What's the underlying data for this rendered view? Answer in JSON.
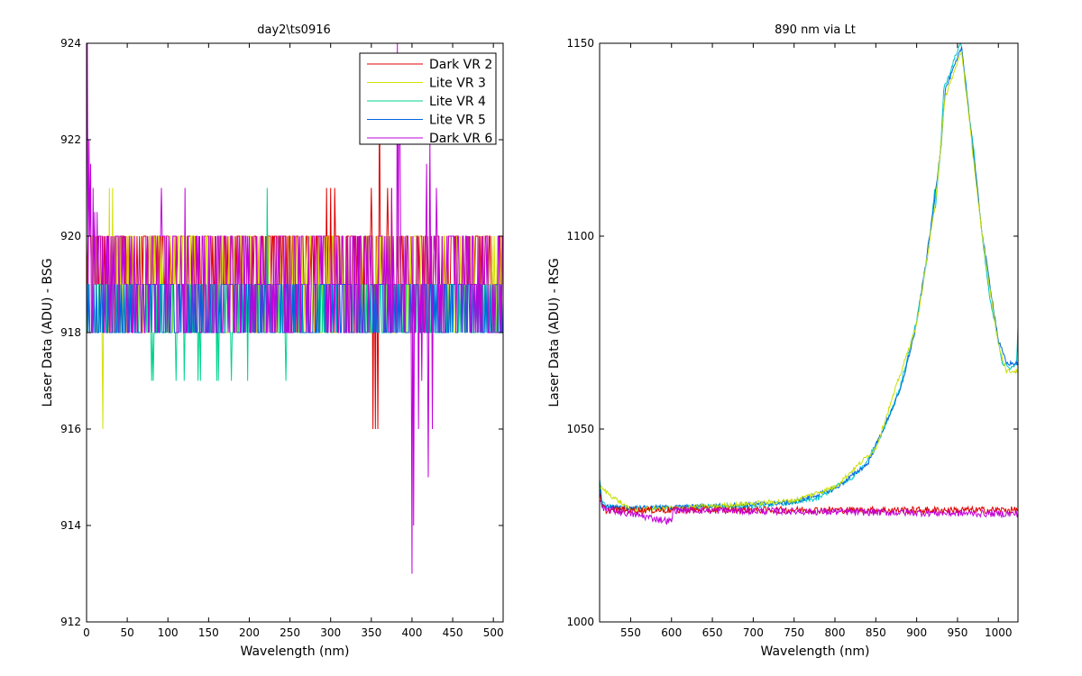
{
  "chart_data": [
    {
      "type": "line",
      "title": "day2\\ts0916",
      "xlabel": "Wavelength (nm)",
      "ylabel": "Laser Data (ADU) - BSG",
      "xlim": [
        0,
        512
      ],
      "ylim": [
        912,
        924
      ],
      "xticks": [
        0,
        50,
        100,
        150,
        200,
        250,
        300,
        350,
        400,
        450,
        500
      ],
      "yticks": [
        912,
        914,
        916,
        918,
        920,
        922,
        924
      ],
      "legend": "top-right",
      "grid": false,
      "series": [
        {
          "name": "Dark VR 2",
          "color": "#e00000",
          "band": [
            919,
            920
          ],
          "spikes": [
            [
              295,
              921
            ],
            [
              300,
              921
            ],
            [
              305,
              921
            ],
            [
              350,
              921
            ],
            [
              352,
              916
            ],
            [
              355,
              916
            ],
            [
              358,
              916
            ],
            [
              360,
              923
            ],
            [
              365,
              918
            ],
            [
              370,
              921
            ],
            [
              375,
              921
            ],
            [
              380,
              919
            ]
          ]
        },
        {
          "name": "Lite VR 3",
          "color": "#d4e000",
          "band": [
            918,
            920
          ],
          "spikes": [
            [
              20,
              916
            ],
            [
              28,
              921
            ],
            [
              32,
              921
            ],
            [
              330,
              918
            ]
          ]
        },
        {
          "name": "Lite VR 4",
          "color": "#00d48a",
          "band": [
            918,
            919
          ],
          "spikes": [
            [
              80,
              917
            ],
            [
              82,
              917
            ],
            [
              110,
              917
            ],
            [
              120,
              917
            ],
            [
              137,
              917
            ],
            [
              140,
              917
            ],
            [
              160,
              917
            ],
            [
              162,
              917
            ],
            [
              178,
              917
            ],
            [
              198,
              917
            ],
            [
              222,
              921
            ],
            [
              245,
              917
            ]
          ]
        },
        {
          "name": "Lite VR 5",
          "color": "#0066e0",
          "band": [
            918,
            919
          ],
          "spikes": []
        },
        {
          "name": "Dark VR 6",
          "color": "#c000d8",
          "band": [
            918,
            920
          ],
          "spikes": [
            [
              1,
              924
            ],
            [
              3,
              922
            ],
            [
              5,
              921.5
            ],
            [
              8,
              921
            ],
            [
              10,
              920.5
            ],
            [
              13,
              920.5
            ],
            [
              92,
              921
            ],
            [
              121,
              921
            ],
            [
              295,
              918
            ],
            [
              350,
              920
            ],
            [
              355,
              918
            ],
            [
              375,
              921
            ],
            [
              382,
              924
            ],
            [
              384,
              923
            ],
            [
              385,
              923
            ],
            [
              400,
              913
            ],
            [
              402,
              914
            ],
            [
              408,
              916
            ],
            [
              412,
              917
            ],
            [
              415,
              918
            ],
            [
              418,
              921.5
            ],
            [
              420,
              915
            ],
            [
              422,
              922
            ],
            [
              425,
              916
            ],
            [
              430,
              921
            ]
          ]
        }
      ]
    },
    {
      "type": "line",
      "title": "890 nm via Lt",
      "xlabel": "Wavelength (nm)",
      "ylabel": "Laser Data (ADU) - RSG",
      "xlim": [
        512,
        1024
      ],
      "ylim": [
        1000,
        1150
      ],
      "xticks": [
        550,
        600,
        650,
        700,
        750,
        800,
        850,
        900,
        950,
        1000
      ],
      "yticks": [
        1000,
        1050,
        1100,
        1150
      ],
      "grid": false,
      "series": [
        {
          "color": "#00c8c8",
          "role": "lite",
          "points": [
            [
              512,
              1037
            ],
            [
              515,
              1031
            ],
            [
              520,
              1030
            ],
            [
              550,
              1029.5
            ],
            [
              600,
              1029.5
            ],
            [
              650,
              1030
            ],
            [
              700,
              1030
            ],
            [
              750,
              1031
            ],
            [
              780,
              1032
            ],
            [
              800,
              1035
            ],
            [
              820,
              1037
            ],
            [
              840,
              1042
            ],
            [
              860,
              1050
            ],
            [
              880,
              1061
            ],
            [
              900,
              1078
            ],
            [
              915,
              1097
            ],
            [
              922,
              1112
            ],
            [
              923,
              1107
            ],
            [
              930,
              1125
            ],
            [
              933,
              1138
            ],
            [
              940,
              1142
            ],
            [
              948,
              1147
            ],
            [
              953,
              1150
            ],
            [
              955,
              1149
            ],
            [
              960,
              1140
            ],
            [
              965,
              1130
            ],
            [
              970,
              1122
            ],
            [
              980,
              1100
            ],
            [
              990,
              1083
            ],
            [
              1000,
              1073
            ],
            [
              1005,
              1067
            ],
            [
              1012,
              1066
            ],
            [
              1018,
              1066
            ],
            [
              1022,
              1067
            ],
            [
              1024,
              1076
            ]
          ]
        },
        {
          "color": "#0066e0",
          "role": "lite-2",
          "points": [
            [
              512,
              1036
            ],
            [
              515,
              1030
            ],
            [
              550,
              1029.5
            ],
            [
              650,
              1030
            ],
            [
              750,
              1031
            ],
            [
              800,
              1034.5
            ],
            [
              840,
              1041
            ],
            [
              880,
              1060
            ],
            [
              900,
              1077
            ],
            [
              920,
              1106
            ],
            [
              930,
              1124
            ],
            [
              935,
              1138
            ],
            [
              950,
              1146
            ],
            [
              955,
              1149
            ],
            [
              965,
              1130
            ],
            [
              980,
              1101
            ],
            [
              1000,
              1073
            ],
            [
              1010,
              1067
            ],
            [
              1024,
              1067
            ]
          ]
        },
        {
          "color": "#c8e000",
          "role": "lite-3",
          "points": [
            [
              512,
              1035
            ],
            [
              550,
              1029
            ],
            [
              650,
              1030
            ],
            [
              750,
              1031.5
            ],
            [
              800,
              1035
            ],
            [
              850,
              1045
            ],
            [
              900,
              1077
            ],
            [
              922,
              1107
            ],
            [
              935,
              1136
            ],
            [
              955,
              1148
            ],
            [
              980,
              1100
            ],
            [
              1000,
              1072
            ],
            [
              1010,
              1065
            ],
            [
              1024,
              1065
            ]
          ]
        },
        {
          "color": "#e00000",
          "role": "dark",
          "base": 1029,
          "points": [
            [
              512,
              1033
            ],
            [
              515,
              1030
            ],
            [
              520,
              1029
            ],
            [
              1024,
              1029
            ]
          ]
        },
        {
          "color": "#c000d8",
          "role": "dark-2",
          "base": 1028.5,
          "points": [
            [
              512,
              1032
            ],
            [
              516,
              1029
            ],
            [
              525,
              1029
            ],
            [
              600,
              1026
            ],
            [
              602,
              1029
            ],
            [
              1024,
              1028
            ]
          ]
        }
      ]
    }
  ]
}
